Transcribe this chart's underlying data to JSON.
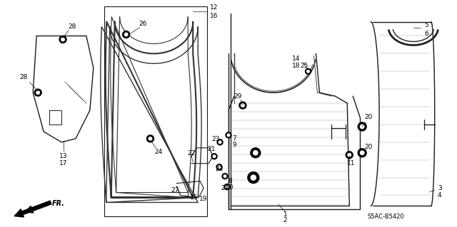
{
  "bg_color": "#ffffff",
  "line_color": "#1a1a1a",
  "gray_fill": "#c8c8c8",
  "mid_gray": "#888888",
  "light_gray": "#bbbbbb",
  "fig_width": 6.4,
  "fig_height": 3.19,
  "watermark": "S5AC-B5420",
  "fr_label": "FR."
}
